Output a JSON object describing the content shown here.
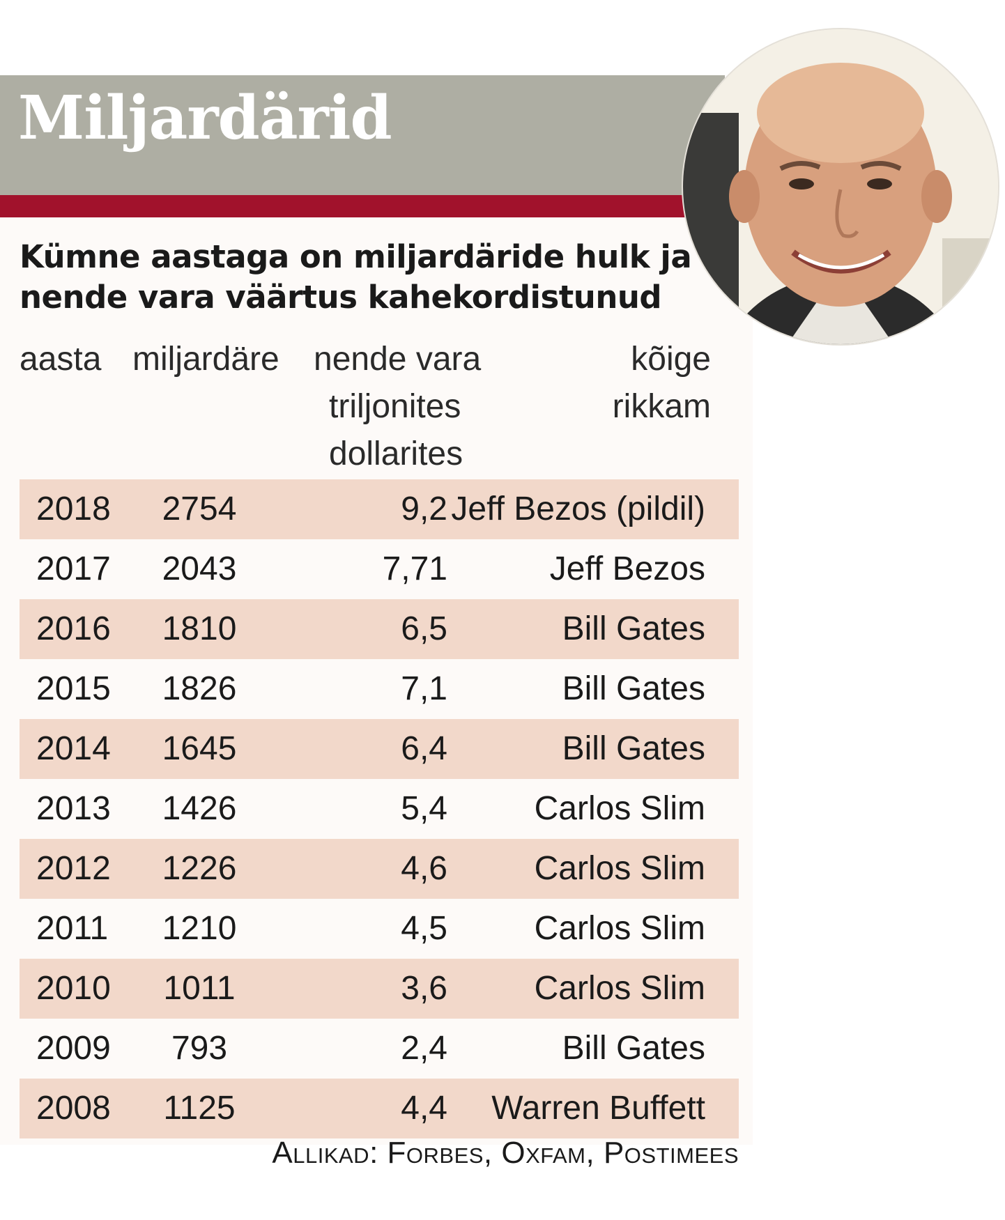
{
  "header": {
    "title": "Miljardärid"
  },
  "subtitle": "Kümne aastaga on miljardäride hulk ja nende vara väärtus kahekordistunud",
  "columns": {
    "year": "aasta",
    "count": "miljardäre",
    "value_line1": "nende vara",
    "value_line2": "triljonites",
    "value_line3": "dollarites",
    "richest_line1": "kõige",
    "richest_line2": "rikkam"
  },
  "rows": [
    {
      "year": "2018",
      "count": "2754",
      "value": "9,2",
      "richest": "Jeff Bezos (pildil)"
    },
    {
      "year": "2017",
      "count": "2043",
      "value": "7,71",
      "richest": "Jeff Bezos"
    },
    {
      "year": "2016",
      "count": "1810",
      "value": "6,5",
      "richest": "Bill Gates"
    },
    {
      "year": "2015",
      "count": "1826",
      "value": "7,1",
      "richest": "Bill Gates"
    },
    {
      "year": "2014",
      "count": "1645",
      "value": "6,4",
      "richest": "Bill Gates"
    },
    {
      "year": "2013",
      "count": "1426",
      "value": "5,4",
      "richest": "Carlos Slim"
    },
    {
      "year": "2012",
      "count": "1226",
      "value": "4,6",
      "richest": "Carlos Slim"
    },
    {
      "year": "2011",
      "count": "1210",
      "value": "4,5",
      "richest": "Carlos Slim"
    },
    {
      "year": "2010",
      "count": "1011",
      "value": "3,6",
      "richest": "Carlos Slim"
    },
    {
      "year": "2009",
      "count": "793",
      "value": "2,4",
      "richest": "Bill Gates"
    },
    {
      "year": "2008",
      "count": "1125",
      "value": "4,4",
      "richest": "Warren Buffett"
    }
  ],
  "source": "Allikad: Forbes, Oxfam, Postimees",
  "colors": {
    "header_band": "#aeaea3",
    "accent_bar": "#a1122c",
    "row_stripe": "#f2d8ca"
  }
}
